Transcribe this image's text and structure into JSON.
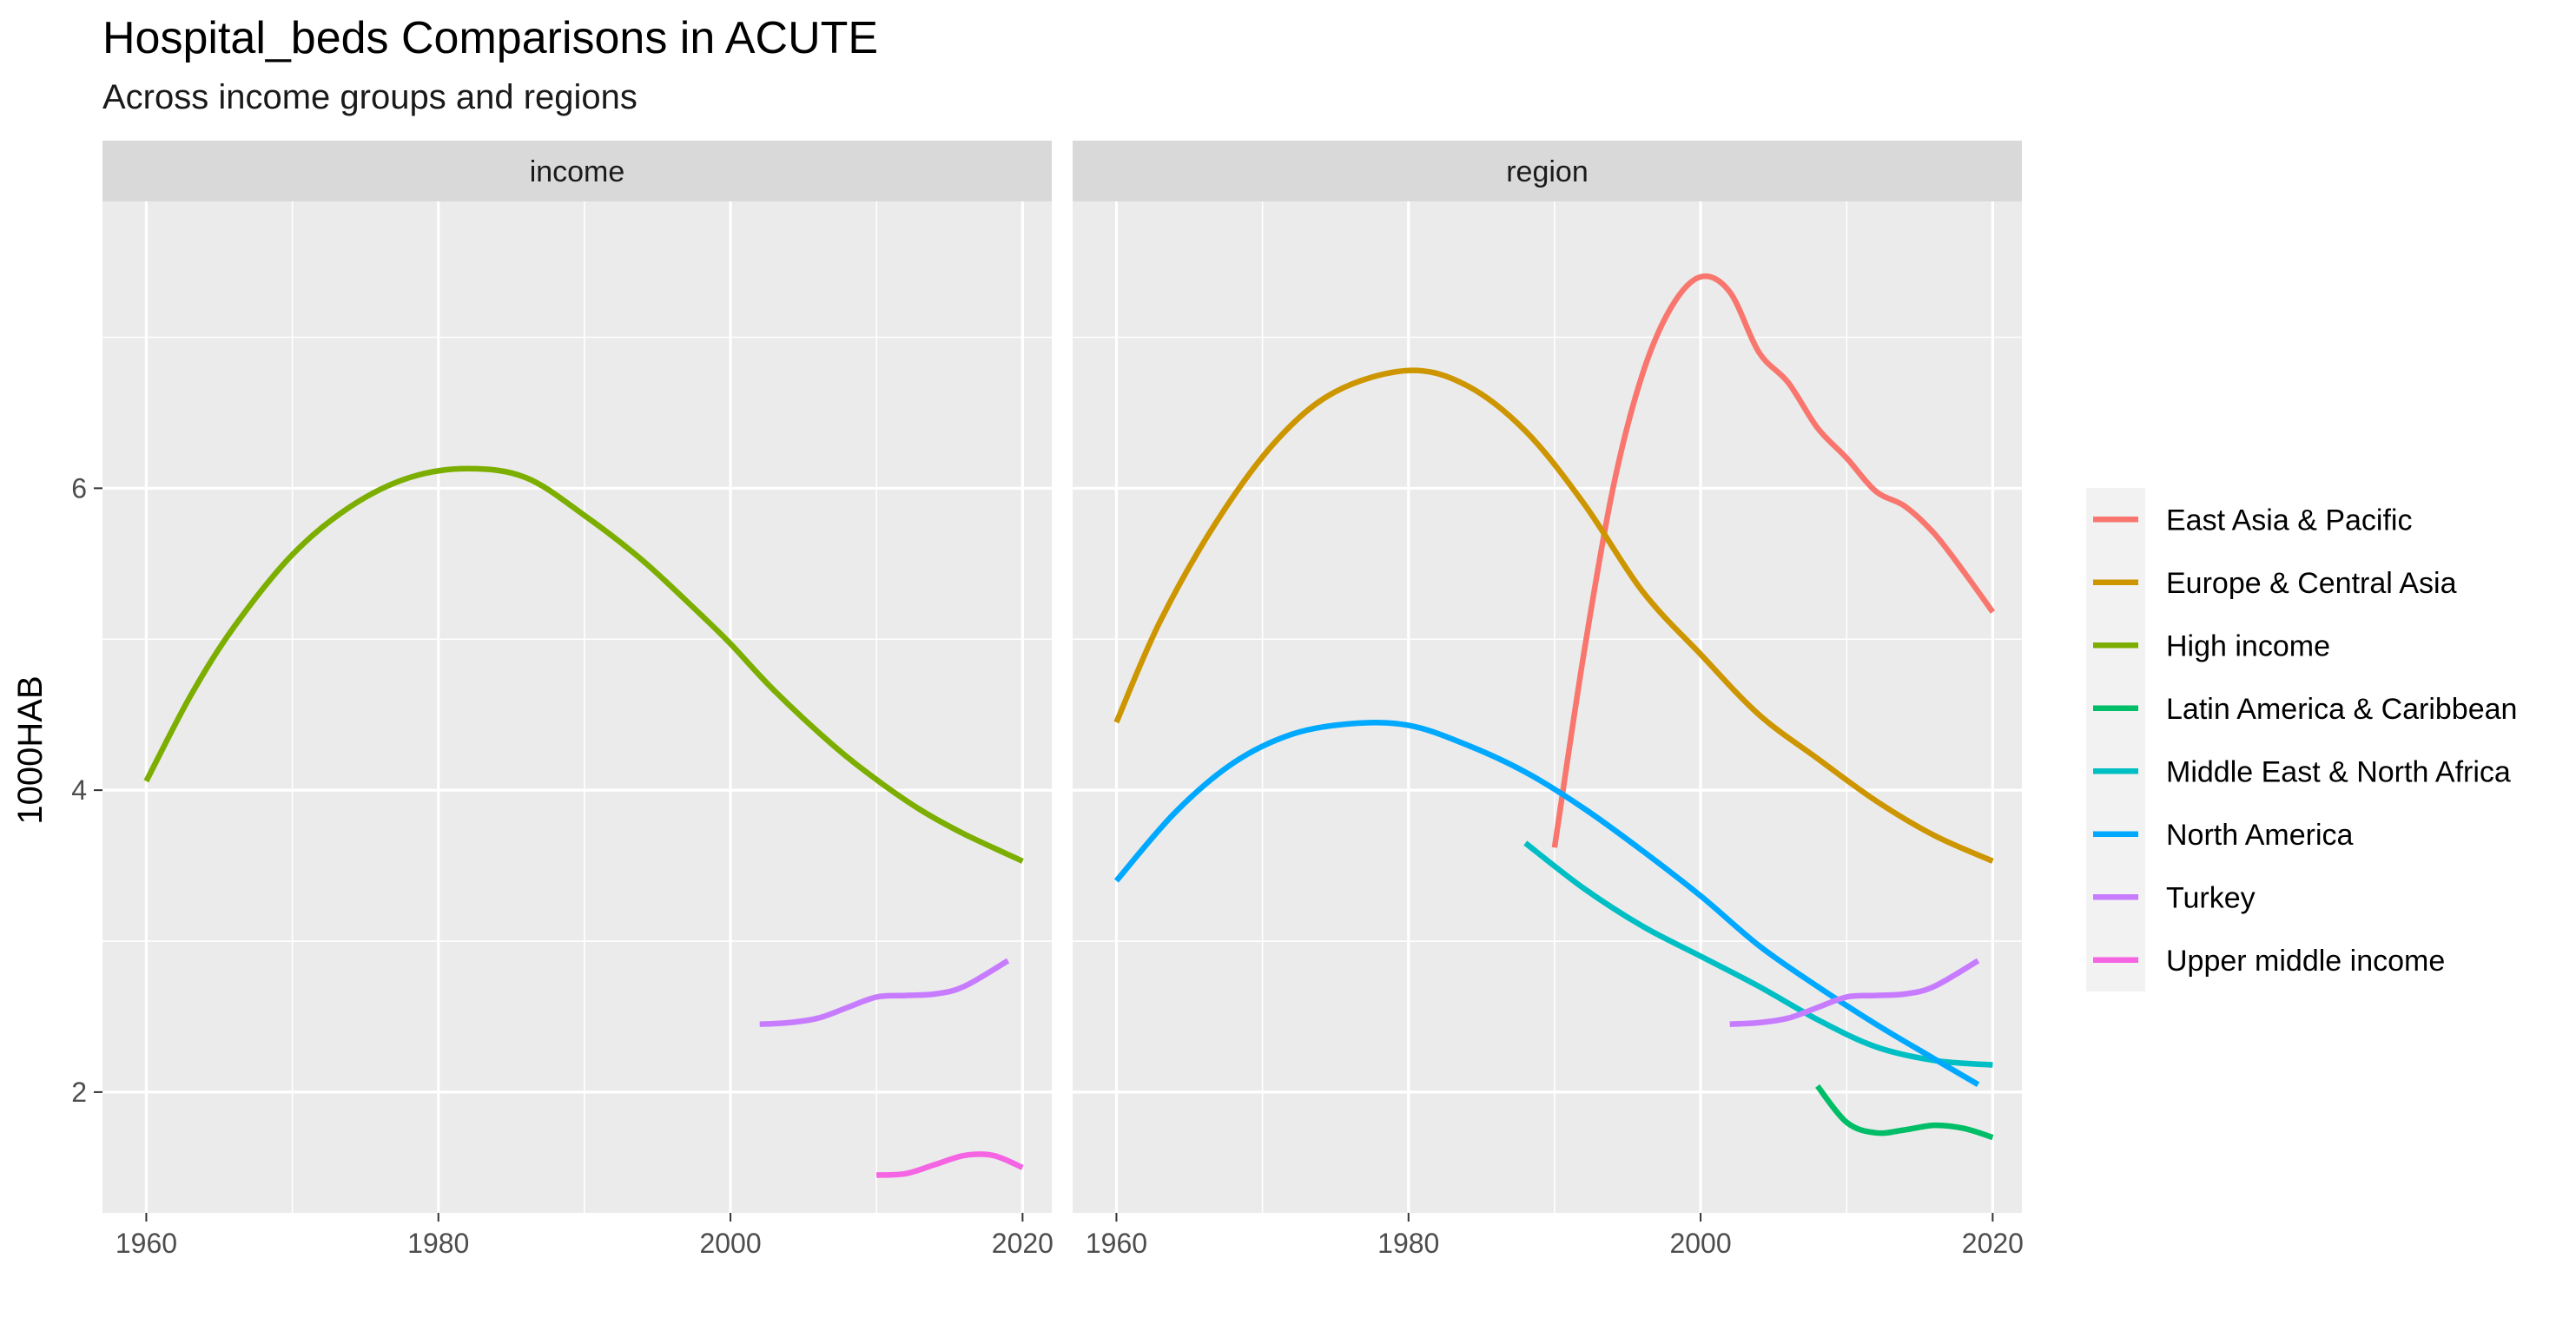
{
  "title": "Hospital_beds Comparisons in ACUTE",
  "subtitle": "Across income groups and regions",
  "chart_data": {
    "type": "line",
    "title": "Hospital_beds Comparisons in ACUTE",
    "subtitle": "Across income groups and regions",
    "xlabel": "",
    "ylabel": "1000HAB",
    "xlim": [
      1957,
      2022
    ],
    "ylim": [
      1.2,
      7.9
    ],
    "x_ticks": [
      1960,
      1980,
      2000,
      2020
    ],
    "y_ticks": [
      2,
      4,
      6
    ],
    "grid": true,
    "legend_position": "right",
    "facets": [
      {
        "name": "income",
        "series": [
          {
            "name": "High income",
            "color": "#7CAE00",
            "points": [
              [
                1960,
                4.06
              ],
              [
                1963,
                4.62
              ],
              [
                1966,
                5.08
              ],
              [
                1970,
                5.56
              ],
              [
                1974,
                5.88
              ],
              [
                1978,
                6.07
              ],
              [
                1982,
                6.13
              ],
              [
                1986,
                6.07
              ],
              [
                1990,
                5.82
              ],
              [
                1994,
                5.52
              ],
              [
                1998,
                5.16
              ],
              [
                2000,
                4.97
              ],
              [
                2003,
                4.66
              ],
              [
                2007,
                4.3
              ],
              [
                2010,
                4.07
              ],
              [
                2013,
                3.87
              ],
              [
                2016,
                3.71
              ],
              [
                2020,
                3.53
              ]
            ]
          },
          {
            "name": "Turkey",
            "color": "#C77CFF",
            "points": [
              [
                2002,
                2.45
              ],
              [
                2004,
                2.46
              ],
              [
                2006,
                2.49
              ],
              [
                2008,
                2.56
              ],
              [
                2010,
                2.63
              ],
              [
                2012,
                2.64
              ],
              [
                2014,
                2.65
              ],
              [
                2016,
                2.7
              ],
              [
                2019,
                2.87
              ]
            ]
          },
          {
            "name": "Upper middle income",
            "color": "#F564E3",
            "points": [
              [
                2010,
                1.45
              ],
              [
                2012,
                1.46
              ],
              [
                2014,
                1.52
              ],
              [
                2016,
                1.58
              ],
              [
                2018,
                1.58
              ],
              [
                2020,
                1.5
              ]
            ]
          }
        ]
      },
      {
        "name": "region",
        "series": [
          {
            "name": "East Asia & Pacific",
            "color": "#F8766D",
            "points": [
              [
                1990,
                3.62
              ],
              [
                1992,
                4.9
              ],
              [
                1994,
                6.0
              ],
              [
                1996,
                6.75
              ],
              [
                1998,
                7.2
              ],
              [
                2000,
                7.4
              ],
              [
                2002,
                7.3
              ],
              [
                2004,
                6.9
              ],
              [
                2006,
                6.7
              ],
              [
                2008,
                6.4
              ],
              [
                2010,
                6.2
              ],
              [
                2012,
                5.98
              ],
              [
                2014,
                5.88
              ],
              [
                2016,
                5.7
              ],
              [
                2018,
                5.45
              ],
              [
                2020,
                5.18
              ]
            ]
          },
          {
            "name": "Europe & Central Asia",
            "color": "#CD9600",
            "points": [
              [
                1960,
                4.45
              ],
              [
                1963,
                5.12
              ],
              [
                1967,
                5.8
              ],
              [
                1971,
                6.32
              ],
              [
                1975,
                6.64
              ],
              [
                1980,
                6.78
              ],
              [
                1984,
                6.68
              ],
              [
                1988,
                6.38
              ],
              [
                1992,
                5.9
              ],
              [
                1996,
                5.32
              ],
              [
                2000,
                4.9
              ],
              [
                2004,
                4.5
              ],
              [
                2008,
                4.21
              ],
              [
                2012,
                3.93
              ],
              [
                2016,
                3.7
              ],
              [
                2020,
                3.53
              ]
            ]
          },
          {
            "name": "Latin America & Caribbean",
            "color": "#00BE67",
            "points": [
              [
                2008,
                2.04
              ],
              [
                2010,
                1.8
              ],
              [
                2012,
                1.73
              ],
              [
                2014,
                1.75
              ],
              [
                2016,
                1.78
              ],
              [
                2018,
                1.76
              ],
              [
                2020,
                1.7
              ]
            ]
          },
          {
            "name": "Middle East & North Africa",
            "color": "#00BFC4",
            "points": [
              [
                1988,
                3.65
              ],
              [
                1992,
                3.35
              ],
              [
                1996,
                3.1
              ],
              [
                2000,
                2.9
              ],
              [
                2004,
                2.7
              ],
              [
                2008,
                2.48
              ],
              [
                2012,
                2.3
              ],
              [
                2016,
                2.21
              ],
              [
                2020,
                2.18
              ]
            ]
          },
          {
            "name": "North America",
            "color": "#00A9FF",
            "points": [
              [
                1960,
                3.4
              ],
              [
                1964,
                3.85
              ],
              [
                1968,
                4.18
              ],
              [
                1972,
                4.37
              ],
              [
                1976,
                4.44
              ],
              [
                1980,
                4.43
              ],
              [
                1984,
                4.3
              ],
              [
                1988,
                4.12
              ],
              [
                1992,
                3.88
              ],
              [
                1996,
                3.6
              ],
              [
                2000,
                3.3
              ],
              [
                2004,
                2.97
              ],
              [
                2008,
                2.7
              ],
              [
                2012,
                2.45
              ],
              [
                2016,
                2.22
              ],
              [
                2019,
                2.05
              ]
            ]
          },
          {
            "name": "Turkey",
            "color": "#C77CFF",
            "points": [
              [
                2002,
                2.45
              ],
              [
                2004,
                2.46
              ],
              [
                2006,
                2.49
              ],
              [
                2008,
                2.56
              ],
              [
                2010,
                2.63
              ],
              [
                2012,
                2.64
              ],
              [
                2014,
                2.65
              ],
              [
                2016,
                2.7
              ],
              [
                2019,
                2.87
              ]
            ]
          }
        ]
      }
    ],
    "legend": [
      {
        "name": "East Asia & Pacific",
        "color": "#F8766D"
      },
      {
        "name": "Europe & Central Asia",
        "color": "#CD9600"
      },
      {
        "name": "High income",
        "color": "#7CAE00"
      },
      {
        "name": "Latin America & Caribbean",
        "color": "#00BE67"
      },
      {
        "name": "Middle East & North Africa",
        "color": "#00BFC4"
      },
      {
        "name": "North America",
        "color": "#00A9FF"
      },
      {
        "name": "Turkey",
        "color": "#C77CFF"
      },
      {
        "name": "Upper middle income",
        "color": "#F564E3"
      }
    ]
  }
}
